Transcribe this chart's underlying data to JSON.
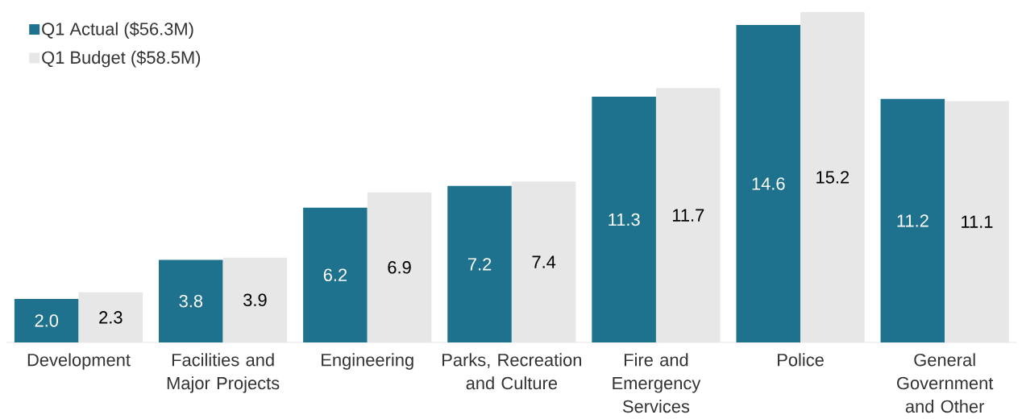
{
  "chart_data": {
    "type": "bar",
    "categories": [
      "Development",
      "Facilities and Major Projects",
      "Engineering",
      "Parks, Recreation and Culture",
      "Fire and Emergency Services",
      "Police",
      "General Government and Other"
    ],
    "series": [
      {
        "name": "Q1 Actual ($56.3M)",
        "color": "#1f728d",
        "values": [
          2.0,
          3.8,
          6.2,
          7.2,
          11.3,
          14.6,
          11.2
        ],
        "value_labels": [
          "2.0",
          "3.8",
          "6.2",
          "7.2",
          "11.3",
          "14.6",
          "11.2"
        ]
      },
      {
        "name": "Q1 Budget ($58.5M)",
        "color": "#e7e7e7",
        "values": [
          2.3,
          3.9,
          6.9,
          7.4,
          11.7,
          15.2,
          11.1
        ],
        "value_labels": [
          "2.3",
          "3.9",
          "6.9",
          "7.4",
          "11.7",
          "15.2",
          "11.1"
        ]
      }
    ],
    "legend": "top left"
  }
}
